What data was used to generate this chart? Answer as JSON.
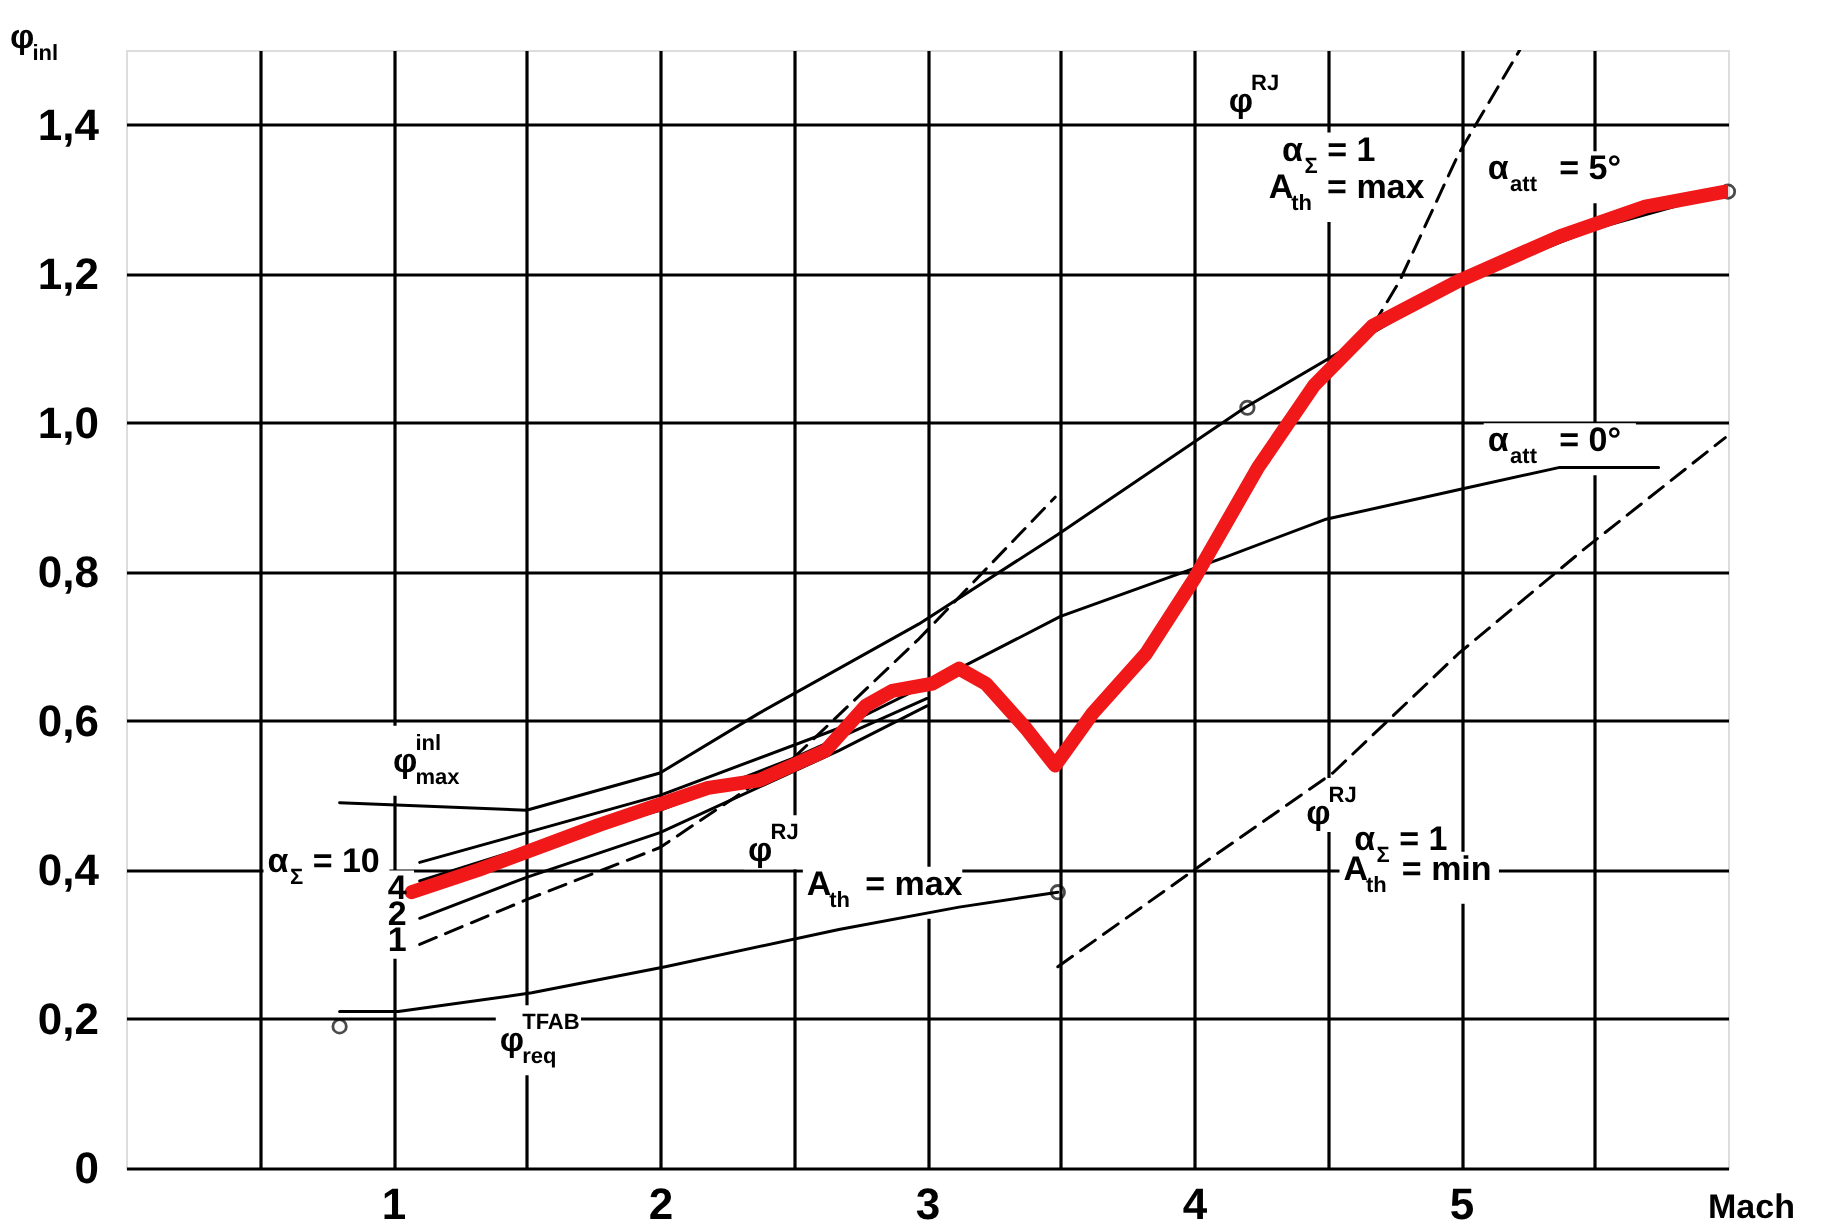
{
  "chart_data": {
    "type": "line",
    "xlabel": "Mach",
    "ylabel": "φ$_{inl}$",
    "xlim": [
      0,
      6
    ],
    "ylim": [
      0,
      1.5
    ],
    "xticks": [
      {
        "value": 0.5,
        "label": null
      },
      1,
      {
        "value": 1.5,
        "label": null
      },
      2,
      {
        "value": 2.5,
        "label": null
      },
      3,
      {
        "value": 3.5,
        "label": null
      },
      4,
      {
        "value": 4.5,
        "label": null
      },
      5,
      {
        "value": 5.5,
        "label": null
      }
    ],
    "yticks": [
      0,
      {
        "value": 0.2,
        "label": "0,2"
      },
      {
        "value": 0.4,
        "label": "0,4"
      },
      {
        "value": 0.6,
        "label": "0,6"
      },
      {
        "value": 0.8,
        "label": "0,8"
      },
      {
        "value": 1.0,
        "label": "1,0"
      },
      {
        "value": 1.2,
        "label": "1,2"
      },
      {
        "value": 1.4,
        "label": "1,4"
      }
    ],
    "grid": true,
    "series": [
      {
        "color": "#000000",
        "x": [
          0.8,
          1.5,
          2.0,
          2.37,
          2.97,
          3.49,
          4.19,
          5.0,
          5.5,
          6.0
        ],
        "values": [
          0.49,
          0.48,
          0.53,
          0.61,
          0.73,
          0.85,
          1.02,
          1.19,
          1.26,
          1.31
        ]
      },
      {
        "color": "#000000",
        "x": [
          1.1,
          1.5,
          2.0,
          2.67,
          3.12,
          3.5,
          4.12,
          4.49,
          4.99,
          5.37,
          5.74
        ],
        "values": [
          0.41,
          0.45,
          0.5,
          0.59,
          0.67,
          0.74,
          0.82,
          0.87,
          0.91,
          0.94,
          0.94
        ]
      },
      {
        "color": "#000000",
        "x": [
          1.1,
          1.5,
          2.0,
          2.5,
          3.0
        ],
        "values": [
          0.385,
          0.43,
          0.48,
          0.55,
          0.63
        ]
      },
      {
        "color": "#000000",
        "x": [
          1.1,
          1.5,
          2.0,
          2.67,
          3.0
        ],
        "values": [
          0.335,
          0.39,
          0.45,
          0.56,
          0.62
        ]
      },
      {
        "color": "#000000",
        "line_style": "dashed",
        "x": [
          1.1,
          1.5,
          2.0,
          2.5,
          2.97,
          3.48,
          4.0,
          4.67,
          4.77,
          4.99,
          5.22
        ],
        "values": [
          0.3,
          0.36,
          0.43,
          0.55,
          0.71,
          0.9,
          null,
          1.13,
          1.19,
          1.36,
          1.5
        ]
      },
      {
        "color": "#000000",
        "x": [
          0.8,
          1.02,
          1.52,
          2.02,
          2.67,
          3.12,
          3.49
        ],
        "values": [
          0.21,
          0.21,
          0.235,
          0.27,
          0.32,
          0.35,
          0.37
        ]
      },
      {
        "color": "#000000",
        "line_style": "dashed",
        "x": [
          3.49,
          4.04,
          4.52,
          4.99,
          5.46,
          5.99
        ],
        "values": [
          0.27,
          0.41,
          0.53,
          0.69,
          0.83,
          0.98
        ]
      },
      {
        "type": "scatter",
        "marker": "circle",
        "color": "#000000",
        "x": [
          0.8,
          3.49,
          4.2,
          6.0
        ],
        "values": [
          0.19,
          0.37,
          1.02,
          1.31
        ]
      },
      {
        "color": "#f01818",
        "x": [
          1.07,
          1.32,
          1.77,
          2.18,
          2.37,
          2.62,
          2.77,
          2.87,
          3.02,
          3.12,
          3.22,
          3.37,
          3.48,
          3.62,
          3.82,
          4.0,
          4.24,
          4.45,
          4.67,
          4.99,
          5.37,
          5.69,
          5.99
        ],
        "values": [
          0.37,
          0.4,
          0.46,
          0.51,
          0.52,
          0.56,
          0.62,
          0.64,
          0.65,
          0.67,
          0.65,
          0.59,
          0.54,
          0.61,
          0.69,
          0.79,
          0.94,
          1.05,
          1.13,
          1.19,
          1.25,
          1.29,
          1.31
        ]
      }
    ],
    "annotations": [
      "φ$^{inl}$$_{max}$",
      "α$_{Σ}$ = 10",
      "4",
      "2",
      "1",
      "φ$^{RJ}$",
      "A$_{th}$ = max",
      "φ$^{TFAB}$$_{req}$",
      "φ$^{RJ}$",
      "α$_{Σ}$ = 1",
      "A$_{th}$ = max",
      "α$_{att}$ = 5°",
      "α$_{att}$ = 0°",
      "φ$^{RJ}$",
      "α$_{Σ}$ = 1",
      "A$_{th}$ = min"
    ]
  }
}
